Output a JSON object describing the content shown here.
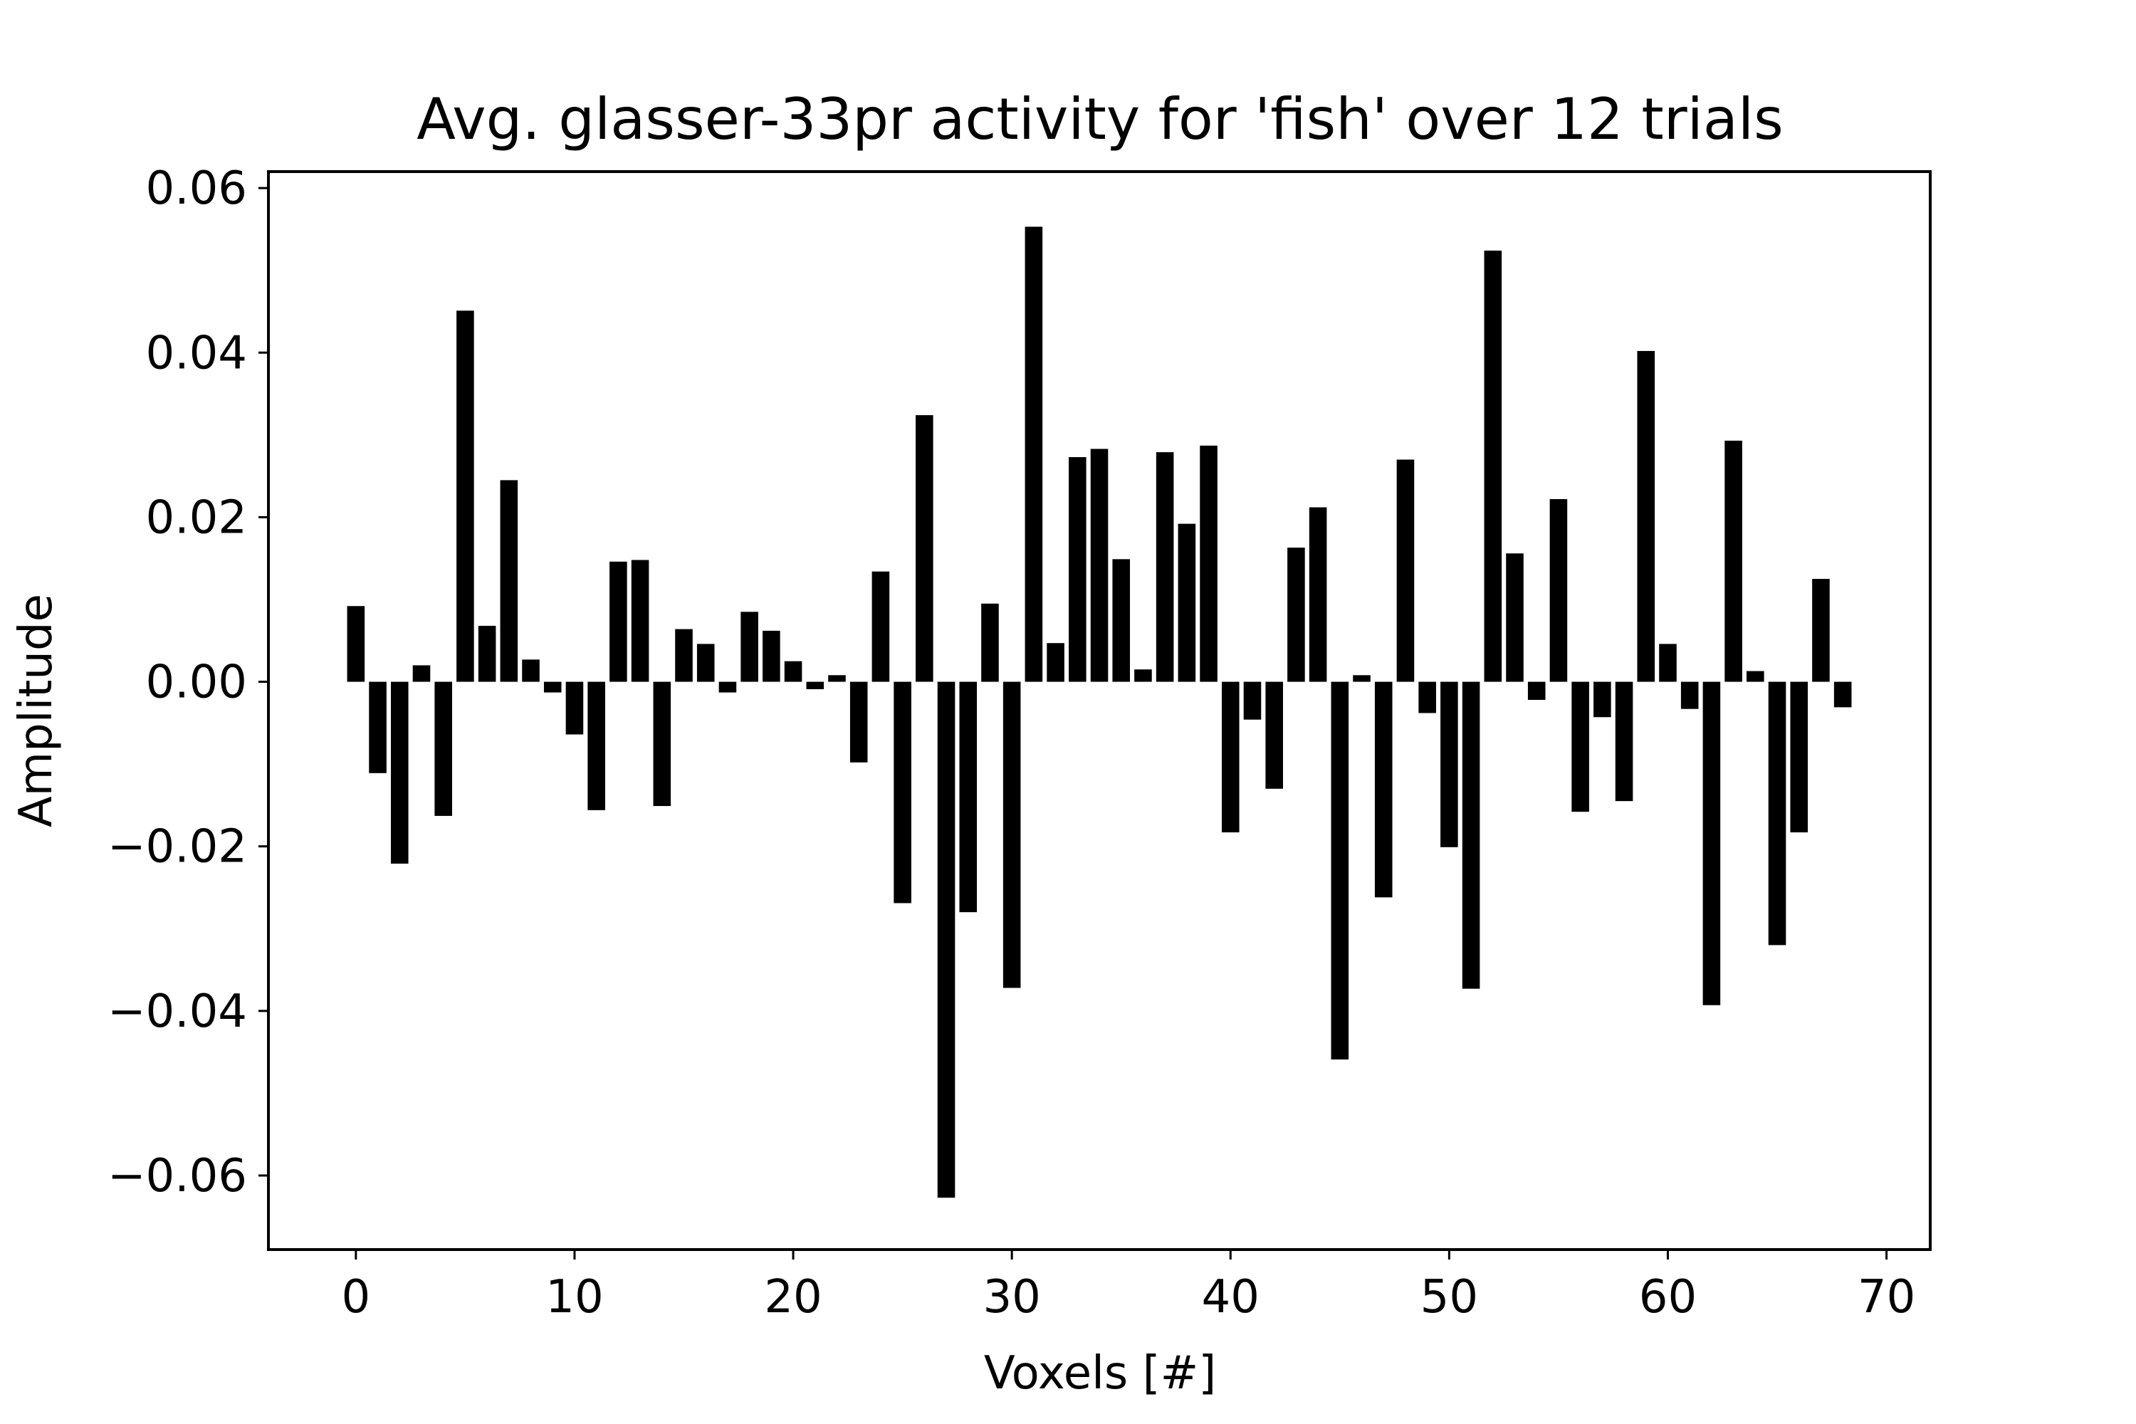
{
  "chart_data": {
    "type": "bar",
    "title": "Avg. glasser-33pr activity for 'fish' over 12 trials",
    "xlabel": "Voxels [#]",
    "ylabel": "Amplitude",
    "xlim": [
      -4,
      72
    ],
    "ylim": [
      -0.069,
      0.062
    ],
    "x_ticks": [
      0,
      10,
      20,
      30,
      40,
      50,
      60,
      70
    ],
    "x_tick_labels": [
      "0",
      "10",
      "20",
      "30",
      "40",
      "50",
      "60",
      "70"
    ],
    "y_ticks": [
      0.06,
      0.04,
      0.02,
      0.0,
      -0.02,
      -0.04,
      -0.06
    ],
    "y_tick_labels": [
      "0.06",
      "0.04",
      "0.02",
      "0.00",
      "−0.02",
      "−0.04",
      "−0.06"
    ],
    "grid": false,
    "bar_color": "#000000",
    "x": [
      0,
      1,
      2,
      3,
      4,
      5,
      6,
      7,
      8,
      9,
      10,
      11,
      12,
      13,
      14,
      15,
      16,
      17,
      18,
      19,
      20,
      21,
      22,
      23,
      24,
      25,
      26,
      27,
      28,
      29,
      30,
      31,
      32,
      33,
      34,
      35,
      36,
      37,
      38,
      39,
      40,
      41,
      42,
      43,
      44,
      45,
      46,
      47,
      48,
      49,
      50,
      51,
      52,
      53,
      54,
      55,
      56,
      57,
      58,
      59,
      60,
      61,
      62,
      63,
      64,
      65,
      66,
      67,
      68
    ],
    "values": [
      0.0092,
      -0.0111,
      -0.0221,
      0.002,
      -0.0163,
      0.0451,
      0.0068,
      0.0245,
      0.0027,
      -0.0013,
      -0.0064,
      -0.0156,
      0.0146,
      0.0148,
      -0.0151,
      0.0064,
      0.0046,
      -0.0013,
      0.0085,
      0.0062,
      0.0025,
      -0.0009,
      0.0008,
      -0.0098,
      0.0134,
      -0.0269,
      0.0324,
      -0.0627,
      -0.028,
      0.0095,
      -0.0372,
      0.0553,
      0.0047,
      0.0273,
      0.0283,
      0.0149,
      0.0015,
      0.0279,
      0.0192,
      0.0287,
      -0.0183,
      -0.0046,
      -0.013,
      0.0163,
      0.0212,
      -0.0459,
      0.0008,
      -0.0262,
      0.027,
      -0.0038,
      -0.0201,
      -0.0373,
      0.0524,
      0.0156,
      -0.0022,
      0.0222,
      -0.0158,
      -0.0043,
      -0.0145,
      0.0402,
      0.0046,
      -0.0033,
      -0.0393,
      0.0293,
      0.0013,
      -0.032,
      -0.0183,
      0.0125,
      -0.0031
    ]
  }
}
